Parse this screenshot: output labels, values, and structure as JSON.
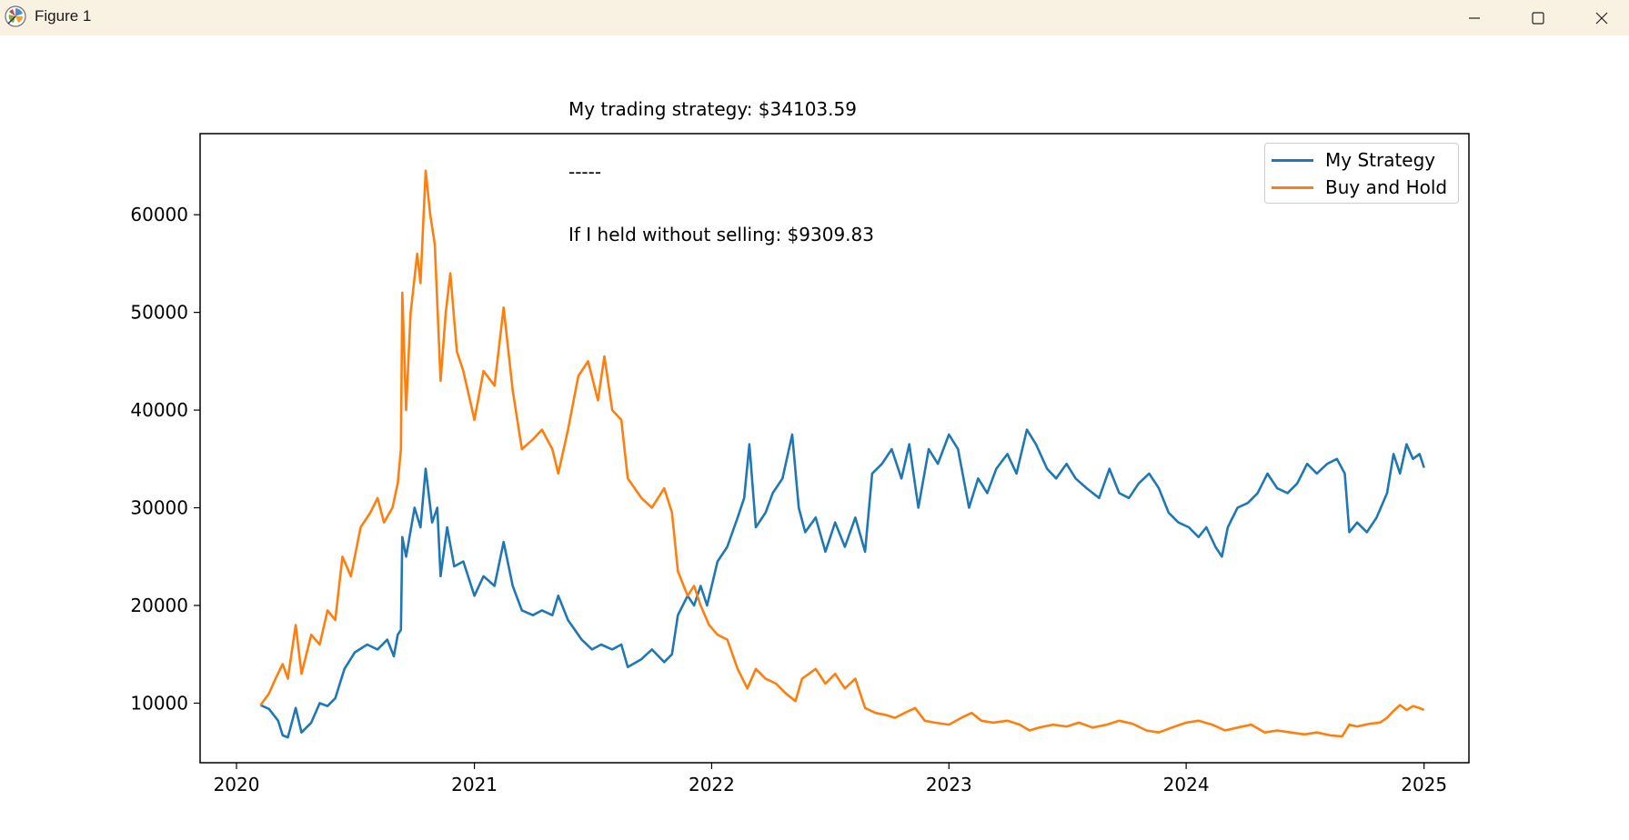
{
  "window": {
    "title": "Figure 1",
    "icons": {
      "app": "matplotlib-icon",
      "minimize": "minimize-icon",
      "maximize": "maximize-icon",
      "close": "close-icon"
    }
  },
  "chart_data": {
    "type": "line",
    "title_lines": [
      "My trading strategy: $34103.59",
      "-----",
      "If I held without selling: $9309.83"
    ],
    "xlabel": "",
    "ylabel": "",
    "x_ticks": [
      "2020",
      "2021",
      "2022",
      "2023",
      "2024",
      "2025"
    ],
    "y_ticks": [
      "10000",
      "20000",
      "30000",
      "40000",
      "50000",
      "60000"
    ],
    "xlim": [
      "2019-11-06",
      "2025-03-11"
    ],
    "ylim": [
      3900,
      68300
    ],
    "grid": false,
    "legend_position": "top-right",
    "colors": {
      "strategy": "#1f77b4",
      "hold": "#ff7f0e"
    },
    "series": [
      {
        "name": "My Strategy",
        "color": "#1f77b4",
        "points": [
          [
            "2020-02-07",
            9800
          ],
          [
            "2020-02-20",
            9400
          ],
          [
            "2020-03-05",
            8200
          ],
          [
            "2020-03-12",
            6700
          ],
          [
            "2020-03-20",
            6500
          ],
          [
            "2020-04-01",
            9500
          ],
          [
            "2020-04-10",
            7000
          ],
          [
            "2020-04-25",
            8000
          ],
          [
            "2020-05-08",
            10000
          ],
          [
            "2020-05-20",
            9700
          ],
          [
            "2020-06-01",
            10500
          ],
          [
            "2020-06-15",
            13500
          ],
          [
            "2020-07-01",
            15200
          ],
          [
            "2020-07-20",
            16000
          ],
          [
            "2020-08-05",
            15500
          ],
          [
            "2020-08-20",
            16500
          ],
          [
            "2020-08-30",
            14800
          ],
          [
            "2020-09-05",
            17000
          ],
          [
            "2020-09-10",
            17500
          ],
          [
            "2020-09-12",
            27000
          ],
          [
            "2020-09-18",
            25000
          ],
          [
            "2020-10-01",
            30000
          ],
          [
            "2020-10-10",
            28000
          ],
          [
            "2020-10-18",
            34000
          ],
          [
            "2020-10-28",
            28500
          ],
          [
            "2020-11-05",
            30000
          ],
          [
            "2020-11-10",
            23000
          ],
          [
            "2020-11-20",
            28000
          ],
          [
            "2020-12-01",
            24000
          ],
          [
            "2020-12-15",
            24500
          ],
          [
            "2021-01-01",
            21000
          ],
          [
            "2021-01-15",
            23000
          ],
          [
            "2021-02-01",
            22000
          ],
          [
            "2021-02-15",
            26500
          ],
          [
            "2021-03-01",
            22000
          ],
          [
            "2021-03-15",
            19500
          ],
          [
            "2021-04-01",
            19000
          ],
          [
            "2021-04-15",
            19500
          ],
          [
            "2021-05-01",
            19000
          ],
          [
            "2021-05-10",
            21000
          ],
          [
            "2021-05-25",
            18500
          ],
          [
            "2021-06-15",
            16500
          ],
          [
            "2021-07-01",
            15500
          ],
          [
            "2021-07-15",
            16000
          ],
          [
            "2021-08-01",
            15500
          ],
          [
            "2021-08-15",
            16000
          ],
          [
            "2021-08-25",
            13700
          ],
          [
            "2021-09-15",
            14500
          ],
          [
            "2021-10-01",
            15500
          ],
          [
            "2021-10-20",
            14200
          ],
          [
            "2021-11-01",
            15000
          ],
          [
            "2021-11-10",
            19000
          ],
          [
            "2021-11-25",
            21000
          ],
          [
            "2021-12-05",
            20000
          ],
          [
            "2021-12-15",
            22000
          ],
          [
            "2021-12-25",
            20000
          ],
          [
            "2022-01-10",
            24500
          ],
          [
            "2022-01-25",
            26000
          ],
          [
            "2022-02-10",
            29000
          ],
          [
            "2022-02-20",
            31000
          ],
          [
            "2022-02-28",
            36500
          ],
          [
            "2022-03-10",
            28000
          ],
          [
            "2022-03-25",
            29500
          ],
          [
            "2022-04-05",
            31500
          ],
          [
            "2022-04-20",
            33000
          ],
          [
            "2022-05-05",
            37500
          ],
          [
            "2022-05-15",
            30000
          ],
          [
            "2022-05-25",
            27500
          ],
          [
            "2022-06-10",
            29000
          ],
          [
            "2022-06-25",
            25500
          ],
          [
            "2022-07-10",
            28500
          ],
          [
            "2022-07-25",
            26000
          ],
          [
            "2022-08-10",
            29000
          ],
          [
            "2022-08-25",
            25500
          ],
          [
            "2022-09-05",
            33500
          ],
          [
            "2022-09-20",
            34500
          ],
          [
            "2022-10-05",
            36000
          ],
          [
            "2022-10-20",
            33000
          ],
          [
            "2022-11-01",
            36500
          ],
          [
            "2022-11-15",
            30000
          ],
          [
            "2022-12-01",
            36000
          ],
          [
            "2022-12-15",
            34500
          ],
          [
            "2023-01-01",
            37500
          ],
          [
            "2023-01-15",
            36000
          ],
          [
            "2023-02-01",
            30000
          ],
          [
            "2023-02-15",
            33000
          ],
          [
            "2023-03-01",
            31500
          ],
          [
            "2023-03-15",
            34000
          ],
          [
            "2023-04-01",
            35500
          ],
          [
            "2023-04-15",
            33500
          ],
          [
            "2023-05-01",
            38000
          ],
          [
            "2023-05-15",
            36500
          ],
          [
            "2023-06-01",
            34000
          ],
          [
            "2023-06-15",
            33000
          ],
          [
            "2023-07-01",
            34500
          ],
          [
            "2023-07-15",
            33000
          ],
          [
            "2023-08-01",
            32000
          ],
          [
            "2023-08-20",
            31000
          ],
          [
            "2023-09-05",
            34000
          ],
          [
            "2023-09-20",
            31500
          ],
          [
            "2023-10-05",
            31000
          ],
          [
            "2023-10-20",
            32500
          ],
          [
            "2023-11-05",
            33500
          ],
          [
            "2023-11-20",
            32000
          ],
          [
            "2023-12-05",
            29500
          ],
          [
            "2023-12-20",
            28500
          ],
          [
            "2024-01-05",
            28000
          ],
          [
            "2024-01-20",
            27000
          ],
          [
            "2024-02-01",
            28000
          ],
          [
            "2024-02-15",
            26000
          ],
          [
            "2024-02-25",
            25000
          ],
          [
            "2024-03-05",
            28000
          ],
          [
            "2024-03-20",
            30000
          ],
          [
            "2024-04-05",
            30500
          ],
          [
            "2024-04-20",
            31500
          ],
          [
            "2024-05-05",
            33500
          ],
          [
            "2024-05-20",
            32000
          ],
          [
            "2024-06-05",
            31500
          ],
          [
            "2024-06-20",
            32500
          ],
          [
            "2024-07-05",
            34500
          ],
          [
            "2024-07-20",
            33500
          ],
          [
            "2024-08-05",
            34500
          ],
          [
            "2024-08-20",
            35000
          ],
          [
            "2024-09-01",
            33500
          ],
          [
            "2024-09-08",
            27500
          ],
          [
            "2024-09-20",
            28500
          ],
          [
            "2024-10-05",
            27500
          ],
          [
            "2024-10-20",
            29000
          ],
          [
            "2024-11-05",
            31500
          ],
          [
            "2024-11-15",
            35500
          ],
          [
            "2024-11-25",
            33500
          ],
          [
            "2024-12-05",
            36500
          ],
          [
            "2024-12-15",
            35000
          ],
          [
            "2024-12-25",
            35500
          ],
          [
            "2025-01-01",
            34103.59
          ]
        ]
      },
      {
        "name": "Buy and Hold",
        "color": "#ff7f0e",
        "points": [
          [
            "2020-02-07",
            9800
          ],
          [
            "2020-02-20",
            11000
          ],
          [
            "2020-03-01",
            12500
          ],
          [
            "2020-03-12",
            14000
          ],
          [
            "2020-03-20",
            12500
          ],
          [
            "2020-04-01",
            18000
          ],
          [
            "2020-04-10",
            13000
          ],
          [
            "2020-04-25",
            17000
          ],
          [
            "2020-05-08",
            16000
          ],
          [
            "2020-05-20",
            19500
          ],
          [
            "2020-06-01",
            18500
          ],
          [
            "2020-06-12",
            25000
          ],
          [
            "2020-06-25",
            23000
          ],
          [
            "2020-07-10",
            28000
          ],
          [
            "2020-07-25",
            29500
          ],
          [
            "2020-08-05",
            31000
          ],
          [
            "2020-08-15",
            28500
          ],
          [
            "2020-08-28",
            30000
          ],
          [
            "2020-09-05",
            32500
          ],
          [
            "2020-09-10",
            36000
          ],
          [
            "2020-09-12",
            52000
          ],
          [
            "2020-09-18",
            40000
          ],
          [
            "2020-09-25",
            50000
          ],
          [
            "2020-10-05",
            56000
          ],
          [
            "2020-10-10",
            53000
          ],
          [
            "2020-10-18",
            64500
          ],
          [
            "2020-10-25",
            60000
          ],
          [
            "2020-11-01",
            57000
          ],
          [
            "2020-11-10",
            43000
          ],
          [
            "2020-11-18",
            50000
          ],
          [
            "2020-11-25",
            54000
          ],
          [
            "2020-12-05",
            46000
          ],
          [
            "2020-12-15",
            44000
          ],
          [
            "2021-01-01",
            39000
          ],
          [
            "2021-01-15",
            44000
          ],
          [
            "2021-02-01",
            42500
          ],
          [
            "2021-02-15",
            50500
          ],
          [
            "2021-03-01",
            42000
          ],
          [
            "2021-03-15",
            36000
          ],
          [
            "2021-04-01",
            37000
          ],
          [
            "2021-04-15",
            38000
          ],
          [
            "2021-05-01",
            36000
          ],
          [
            "2021-05-10",
            33500
          ],
          [
            "2021-05-25",
            38000
          ],
          [
            "2021-06-10",
            43500
          ],
          [
            "2021-06-25",
            45000
          ],
          [
            "2021-07-10",
            41000
          ],
          [
            "2021-07-20",
            45500
          ],
          [
            "2021-08-01",
            40000
          ],
          [
            "2021-08-15",
            39000
          ],
          [
            "2021-08-25",
            33000
          ],
          [
            "2021-09-15",
            31000
          ],
          [
            "2021-10-01",
            30000
          ],
          [
            "2021-10-20",
            32000
          ],
          [
            "2021-11-01",
            29500
          ],
          [
            "2021-11-10",
            23500
          ],
          [
            "2021-11-25",
            21000
          ],
          [
            "2021-12-05",
            22000
          ],
          [
            "2021-12-15",
            20000
          ],
          [
            "2021-12-28",
            18000
          ],
          [
            "2022-01-10",
            17000
          ],
          [
            "2022-01-25",
            16500
          ],
          [
            "2022-02-10",
            13500
          ],
          [
            "2022-02-25",
            11500
          ],
          [
            "2022-03-10",
            13500
          ],
          [
            "2022-03-25",
            12500
          ],
          [
            "2022-04-10",
            12000
          ],
          [
            "2022-04-25",
            11000
          ],
          [
            "2022-05-10",
            10200
          ],
          [
            "2022-05-20",
            12500
          ],
          [
            "2022-06-10",
            13500
          ],
          [
            "2022-06-25",
            12000
          ],
          [
            "2022-07-10",
            13000
          ],
          [
            "2022-07-25",
            11500
          ],
          [
            "2022-08-10",
            12500
          ],
          [
            "2022-08-25",
            9500
          ],
          [
            "2022-09-10",
            9000
          ],
          [
            "2022-09-25",
            8800
          ],
          [
            "2022-10-10",
            8500
          ],
          [
            "2022-10-25",
            9000
          ],
          [
            "2022-11-10",
            9500
          ],
          [
            "2022-11-25",
            8200
          ],
          [
            "2022-12-10",
            8000
          ],
          [
            "2023-01-01",
            7800
          ],
          [
            "2023-01-20",
            8500
          ],
          [
            "2023-02-05",
            9000
          ],
          [
            "2023-02-20",
            8200
          ],
          [
            "2023-03-10",
            8000
          ],
          [
            "2023-04-01",
            8200
          ],
          [
            "2023-04-20",
            7800
          ],
          [
            "2023-05-05",
            7200
          ],
          [
            "2023-05-20",
            7500
          ],
          [
            "2023-06-10",
            7800
          ],
          [
            "2023-07-01",
            7600
          ],
          [
            "2023-07-20",
            8000
          ],
          [
            "2023-08-10",
            7500
          ],
          [
            "2023-09-01",
            7800
          ],
          [
            "2023-09-20",
            8200
          ],
          [
            "2023-10-10",
            7900
          ],
          [
            "2023-11-01",
            7200
          ],
          [
            "2023-11-20",
            7000
          ],
          [
            "2023-12-10",
            7500
          ],
          [
            "2024-01-01",
            8000
          ],
          [
            "2024-01-20",
            8200
          ],
          [
            "2024-02-10",
            7800
          ],
          [
            "2024-03-01",
            7200
          ],
          [
            "2024-03-20",
            7500
          ],
          [
            "2024-04-10",
            7800
          ],
          [
            "2024-05-01",
            7000
          ],
          [
            "2024-05-20",
            7200
          ],
          [
            "2024-06-10",
            7000
          ],
          [
            "2024-07-01",
            6800
          ],
          [
            "2024-07-20",
            7000
          ],
          [
            "2024-08-10",
            6700
          ],
          [
            "2024-08-28",
            6600
          ],
          [
            "2024-09-08",
            7800
          ],
          [
            "2024-09-20",
            7600
          ],
          [
            "2024-10-10",
            7900
          ],
          [
            "2024-10-25",
            8000
          ],
          [
            "2024-11-05",
            8500
          ],
          [
            "2024-11-15",
            9200
          ],
          [
            "2024-11-25",
            9800
          ],
          [
            "2024-12-05",
            9300
          ],
          [
            "2024-12-15",
            9700
          ],
          [
            "2024-12-25",
            9500
          ],
          [
            "2025-01-01",
            9309.83
          ]
        ]
      }
    ]
  }
}
